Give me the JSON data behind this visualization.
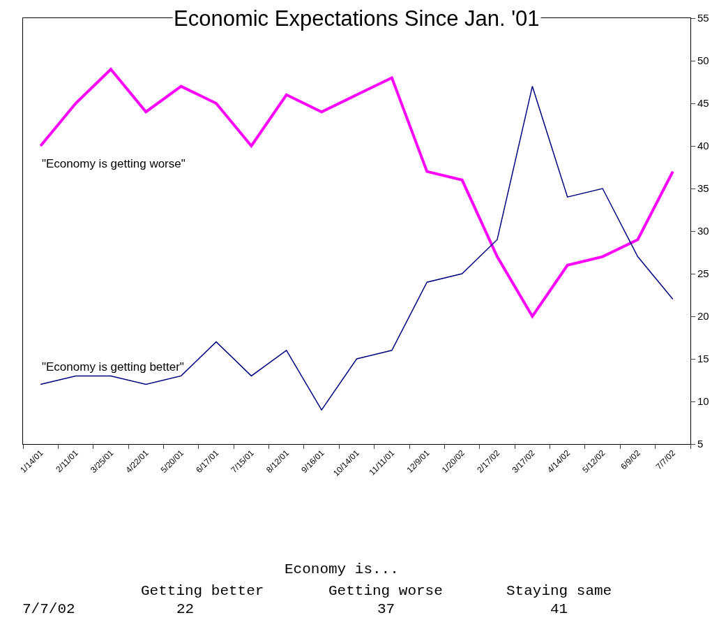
{
  "chart_data": {
    "type": "line",
    "title": "Economic Expectations Since Jan. '01",
    "categories": [
      "1/14/01",
      "2/11/01",
      "3/25/01",
      "4/22/01",
      "5/20/01",
      "6/17/01",
      "7/15/01",
      "8/12/01",
      "9/16/01",
      "10/14/01",
      "11/11/01",
      "12/9/01",
      "1/20/02",
      "2/17/02",
      "3/17/02",
      "4/14/02",
      "5/12/02",
      "6/9/02",
      "7/7/02"
    ],
    "series": [
      {
        "name": "\"Economy is getting worse\"",
        "color": "#ff00ff",
        "values": [
          40,
          45,
          49,
          44,
          47,
          45,
          40,
          46,
          44,
          46,
          48,
          37,
          36,
          27,
          20,
          26,
          27,
          29,
          37
        ]
      },
      {
        "name": "\"Economy is getting better\"",
        "color": "#000080",
        "values": [
          12,
          13,
          13,
          12,
          13,
          17,
          13,
          16,
          9,
          15,
          16,
          24,
          25,
          29,
          47,
          34,
          35,
          27,
          22
        ]
      }
    ],
    "ylim": [
      5,
      55
    ],
    "yticks": [
      5,
      10,
      15,
      20,
      25,
      30,
      35,
      40,
      45,
      50,
      55
    ],
    "annotations": [
      "Economy is...",
      "Getting better",
      "Getting worse",
      "Staying same",
      "7/7/02",
      "22",
      "37",
      "41"
    ],
    "legend": false,
    "marker": "none",
    "line_style": "solid"
  }
}
